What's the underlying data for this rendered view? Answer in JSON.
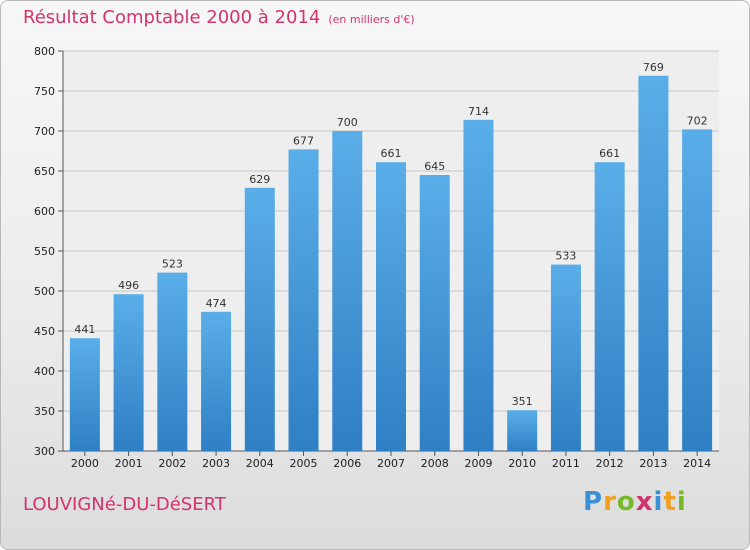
{
  "header": {
    "title": "Résultat Comptable 2000 à 2014",
    "subtitle": "(en milliers d'€)"
  },
  "footer": {
    "city": "LOUVIGNé-DU-DéSERT"
  },
  "brand": {
    "letters": [
      "P",
      "r",
      "o",
      "x",
      "i",
      "t",
      "i"
    ],
    "colors": [
      "#3a8fd6",
      "#f0a020",
      "#76b82a",
      "#d4316e",
      "#3a8fd6",
      "#f0a020",
      "#76b82a"
    ]
  },
  "colors": {
    "bar_top": "#5aaee8",
    "bar_bottom": "#2f7fc4",
    "title": "#d4316e"
  },
  "chart_data": {
    "type": "bar",
    "categories": [
      "2000",
      "2001",
      "2002",
      "2003",
      "2004",
      "2005",
      "2006",
      "2007",
      "2008",
      "2009",
      "2010",
      "2011",
      "2012",
      "2013",
      "2014"
    ],
    "values": [
      441,
      496,
      523,
      474,
      629,
      677,
      700,
      661,
      645,
      714,
      351,
      533,
      661,
      769,
      702
    ],
    "ylim": [
      300,
      800
    ],
    "yticks": [
      300,
      350,
      400,
      450,
      500,
      550,
      600,
      650,
      700,
      750,
      800
    ],
    "grid": true,
    "legend": "none"
  }
}
